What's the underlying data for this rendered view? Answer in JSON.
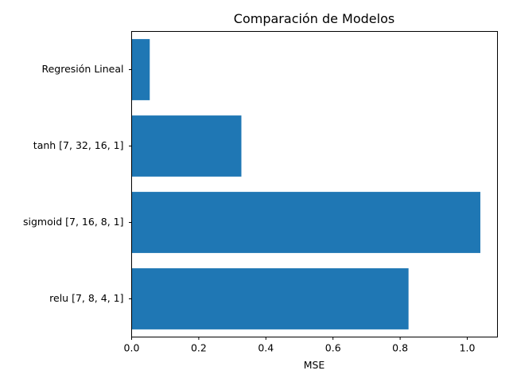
{
  "chart_data": {
    "type": "bar",
    "orientation": "horizontal",
    "title": "Comparación de Modelos",
    "xlabel": "MSE",
    "ylabel": "",
    "categories": [
      "relu [7, 8, 4, 1]",
      "sigmoid [7, 16, 8, 1]",
      "tanh [7, 32, 16, 1]",
      "Regresión Lineal"
    ],
    "values": [
      0.825,
      1.039,
      0.327,
      0.054
    ],
    "xlim": [
      0,
      1.09
    ],
    "xticks": [
      0.0,
      0.2,
      0.4,
      0.6,
      0.8,
      1.0
    ],
    "xtick_labels": [
      "0.0",
      "0.2",
      "0.4",
      "0.6",
      "0.8",
      "1.0"
    ],
    "grid": false,
    "bar_color": "#1f77b4"
  }
}
